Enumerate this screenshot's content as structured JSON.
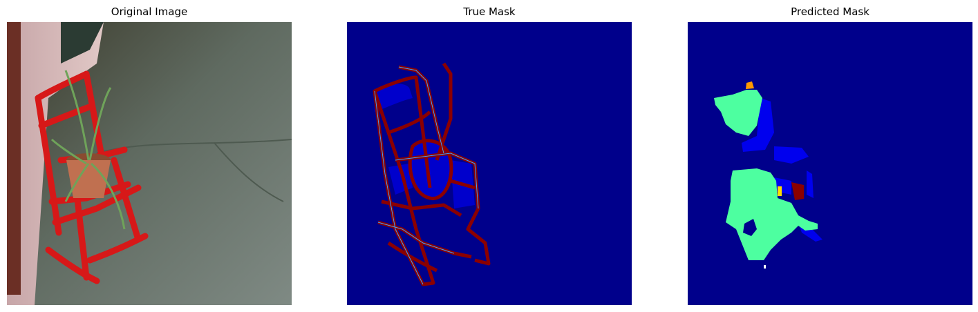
{
  "figure": {
    "panels": [
      {
        "title": "Original Image",
        "content": "photo"
      },
      {
        "title": "True Mask",
        "content": "segmentation-mask"
      },
      {
        "title": "Predicted Mask",
        "content": "segmentation-mask"
      }
    ]
  },
  "colors": {
    "mask_background": "#00008b",
    "class_dark_red": "#8b0000",
    "class_blue": "#0000e6",
    "class_green": "#4dffa0",
    "class_orange": "#ff9900",
    "chair_red": "#d71818"
  }
}
